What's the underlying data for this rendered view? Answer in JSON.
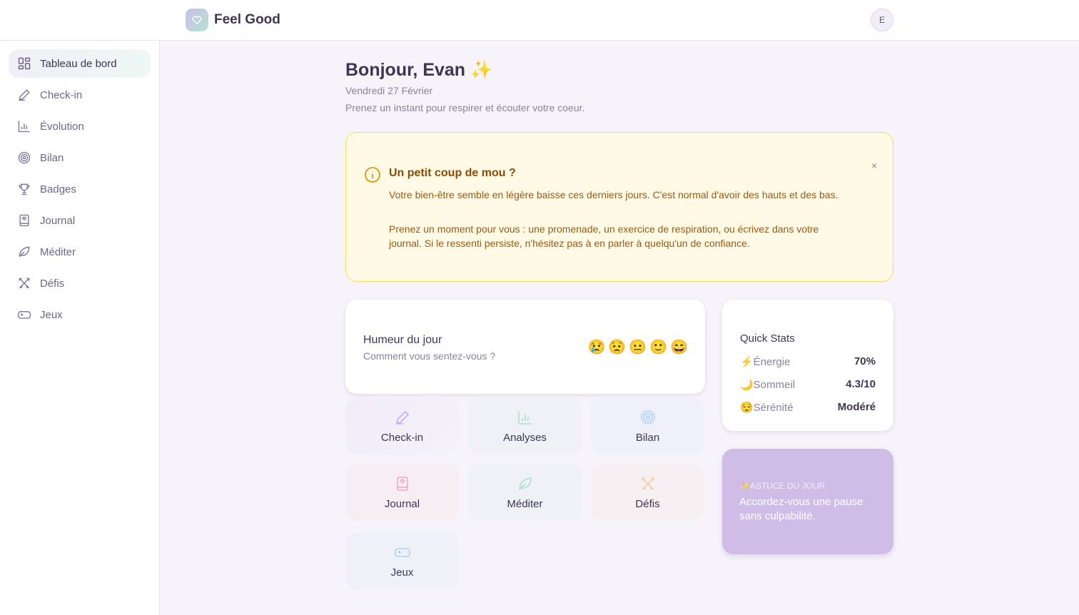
{
  "app": {
    "title": "Feel Good",
    "avatar_initial": "E"
  },
  "sidebar": {
    "items": [
      {
        "label": "Tableau de bord",
        "icon": "dashboard-icon",
        "active": true
      },
      {
        "label": "Check-in",
        "icon": "pencil-icon"
      },
      {
        "label": "Évolution",
        "icon": "bar-chart-icon"
      },
      {
        "label": "Bilan",
        "icon": "target-icon"
      },
      {
        "label": "Badges",
        "icon": "trophy-icon"
      },
      {
        "label": "Journal",
        "icon": "journal-icon"
      },
      {
        "label": "Méditer",
        "icon": "leaf-icon"
      },
      {
        "label": "Défis",
        "icon": "swords-icon"
      },
      {
        "label": "Jeux",
        "icon": "gamepad-icon"
      }
    ]
  },
  "greeting": {
    "title": "Bonjour, Evan ✨",
    "date": "Vendredi 27 Février",
    "subtitle": "Prenez un instant pour respirer et écouter votre coeur."
  },
  "alert": {
    "title": "Un petit coup de mou ?",
    "p1": "Votre bien-être semble en légère baisse ces derniers jours. C'est normal d'avoir des hauts et des bas.",
    "p2": "Prenez un moment pour vous : une promenade, un exercice de respiration, ou écrivez dans votre journal. Si le ressenti persiste, n'hésitez pas à en parler à quelqu'un de confiance.",
    "close": "×"
  },
  "mood": {
    "title": "Humeur du jour",
    "subtitle": "Comment vous sentez-vous ?",
    "emojis": [
      "😢",
      "😟",
      "😐",
      "🙂",
      "😄"
    ]
  },
  "tiles": [
    {
      "label": "Check-in",
      "icon": "pencil-icon",
      "color": "#c4aef0"
    },
    {
      "label": "Analyses",
      "icon": "bar-chart-icon",
      "color": "#a8e3c8"
    },
    {
      "label": "Bilan",
      "icon": "target-icon",
      "color": "#a9d3f2"
    },
    {
      "label": "Journal",
      "icon": "journal-icon",
      "color": "#f3a9bf"
    },
    {
      "label": "Méditer",
      "icon": "leaf-icon",
      "color": "#a8e3c8"
    },
    {
      "label": "Défis",
      "icon": "swords-icon",
      "color": "#f5cfa8"
    },
    {
      "label": "Jeux",
      "icon": "gamepad-icon",
      "color": "#a9d3f2"
    }
  ],
  "stats": {
    "title": "Quick Stats",
    "rows": [
      {
        "label": "⚡Énergie",
        "value": "70%"
      },
      {
        "label": "🌙Sommeil",
        "value": "4.3/10"
      },
      {
        "label": "😌Sérénité",
        "value": "Modéré"
      }
    ]
  },
  "tip": {
    "label": "✨ASTUCE DU JOUR",
    "text": "Accordez-vous une pause sans culpabilité."
  }
}
